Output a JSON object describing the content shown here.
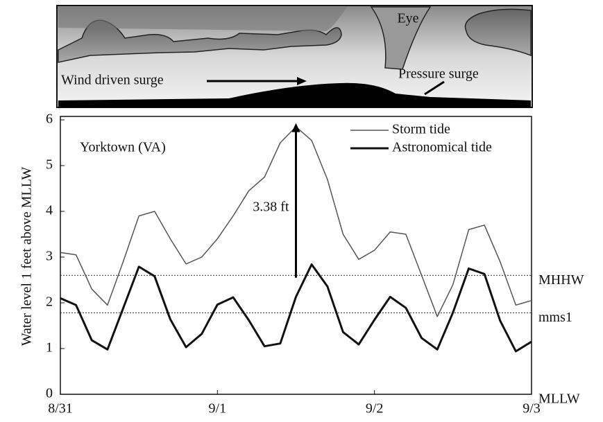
{
  "diagram": {
    "labels": [
      "Eye",
      "Wind driven surge",
      "Pressure surge"
    ]
  },
  "chart_data": {
    "type": "line",
    "station": "Yorktown (VA)",
    "y_label": "Water level 1 feet above MLLW",
    "x": [
      0,
      0.1,
      0.2,
      0.3,
      0.4,
      0.5,
      0.6,
      0.7,
      0.8,
      0.9,
      1.0,
      1.1,
      1.2,
      1.3,
      1.4,
      1.5,
      1.6,
      1.7,
      1.8,
      1.9,
      2.0,
      2.1,
      2.2,
      2.3,
      2.4,
      2.5,
      2.6,
      2.7,
      2.8,
      2.9,
      3.0
    ],
    "series": [
      {
        "name": "Storm tide",
        "color": "#555555",
        "width": 1.5,
        "values": [
          3.1,
          3.05,
          2.3,
          1.95,
          2.9,
          3.9,
          4.0,
          3.4,
          2.85,
          3.0,
          3.4,
          3.9,
          4.45,
          4.75,
          5.5,
          5.85,
          5.55,
          4.7,
          3.5,
          2.95,
          3.15,
          3.55,
          3.5,
          2.6,
          1.7,
          2.4,
          3.6,
          3.7,
          2.9,
          1.95,
          2.05
        ]
      },
      {
        "name": "Astronomical tide",
        "color": "#111111",
        "width": 3,
        "values": [
          2.1,
          1.95,
          1.18,
          0.98,
          1.88,
          2.79,
          2.58,
          1.64,
          1.03,
          1.32,
          1.96,
          2.12,
          1.62,
          1.05,
          1.11,
          2.13,
          2.84,
          2.36,
          1.36,
          1.09,
          1.63,
          2.13,
          1.89,
          1.23,
          0.98,
          1.79,
          2.75,
          2.63,
          1.61,
          0.94,
          1.15
        ]
      }
    ],
    "xlim": [
      0,
      3
    ],
    "xticks": [
      {
        "value": 0,
        "label": "8/31"
      },
      {
        "value": 1,
        "label": "9/1"
      },
      {
        "value": 2,
        "label": "9/2"
      },
      {
        "value": 3,
        "label": "9/3"
      }
    ],
    "ylim": [
      0,
      6
    ],
    "yticks": [
      0,
      1,
      2,
      3,
      4,
      5,
      6
    ],
    "reference_lines": [
      {
        "label": "MHHW",
        "value": 2.6
      },
      {
        "label": "mms1",
        "value": 1.78
      },
      {
        "label": "MLLW",
        "value": 0
      }
    ],
    "annotation": {
      "text": "3.38 ft",
      "x": 1.5,
      "from": 2.55,
      "to": 5.93
    }
  }
}
